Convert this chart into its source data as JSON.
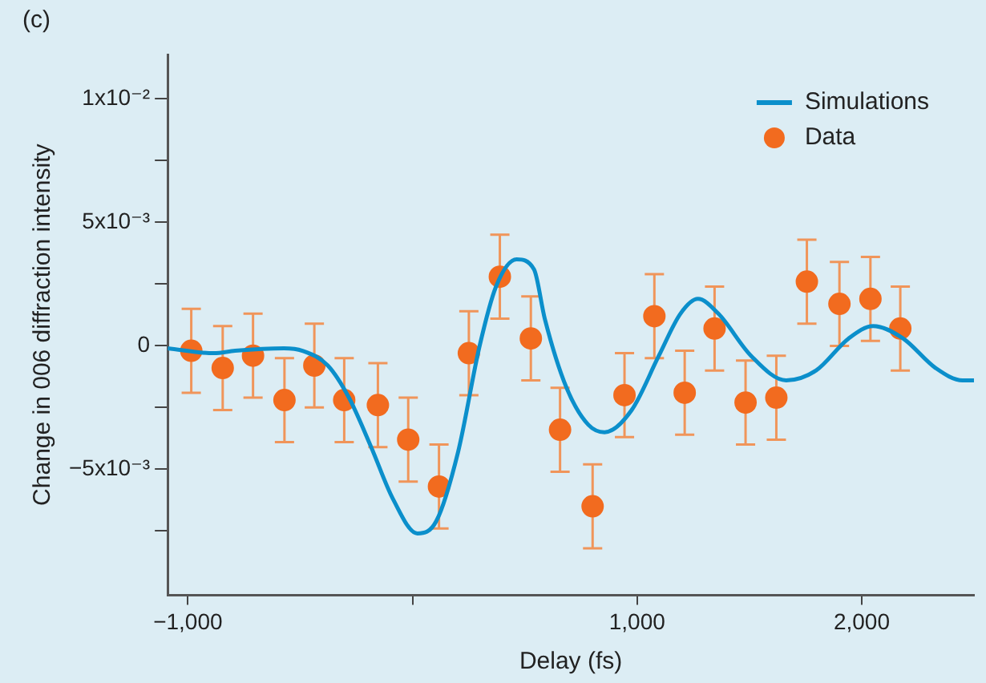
{
  "chart_data": {
    "type": "scatter",
    "title": "(c)",
    "xlabel": "Delay (fs)",
    "ylabel": "Change in 006 diffraction intensity",
    "xlim": [
      -1090,
      2500
    ],
    "xticks": [
      {
        "value": -1000,
        "label": "−1,000"
      },
      {
        "value": 0,
        "label": null
      },
      {
        "value": 1000,
        "label": "1,000"
      },
      {
        "value": 2000,
        "label": "2,000"
      }
    ],
    "ylim": [
      -0.0101,
      0.0118
    ],
    "yticks": [
      {
        "value": -0.0075,
        "label": null
      },
      {
        "value": -0.005,
        "label": "−5x10⁻³"
      },
      {
        "value": -0.0025,
        "label": null
      },
      {
        "value": 0,
        "label": "0"
      },
      {
        "value": 0.0025,
        "label": null
      },
      {
        "value": 0.005,
        "label": "5x10⁻³"
      },
      {
        "value": 0.0075,
        "label": null
      },
      {
        "value": 0.01,
        "label": "1x10⁻²"
      }
    ],
    "grid": false,
    "legend": "top right",
    "series": [
      {
        "name": "Simulations",
        "type": "line",
        "color": "#0b8fcb",
        "marker": "none",
        "line_style": "solid",
        "x": [
          -1090,
          -884,
          -790,
          -572,
          -490,
          -377,
          -283,
          -184,
          -87,
          22,
          106,
          203,
          299,
          372,
          464,
          541,
          589,
          686,
          783,
          855,
          976,
          1097,
          1193,
          1271,
          1362,
          1507,
          1664,
          1797,
          1942,
          2051,
          2184,
          2329,
          2449,
          2500
        ],
        "values": [
          -0.0001,
          -0.0003,
          -0.0002,
          -0.0001,
          -0.0002,
          -0.0008,
          -0.0021,
          -0.0041,
          -0.0062,
          -0.0076,
          -0.0071,
          -0.0043,
          0.0,
          0.0024,
          0.0035,
          0.0031,
          0.0011,
          -0.0017,
          -0.0032,
          -0.0035,
          -0.0026,
          -0.0004,
          0.0013,
          0.0019,
          0.0013,
          -0.0004,
          -0.0014,
          -0.001,
          0.0003,
          0.0008,
          0.0003,
          -0.0009,
          -0.0014,
          -0.0014
        ]
      },
      {
        "name": "Data",
        "color": "#f26b1f",
        "marker": "circle",
        "x": [
          -985,
          -845,
          -710,
          -570,
          -437,
          -304,
          -154,
          -19,
          118,
          251,
          389,
          527,
          657,
          802,
          944,
          1077,
          1212,
          1345,
          1483,
          1620,
          1756,
          1901,
          2039,
          2172
        ],
        "values": [
          -0.0002,
          -0.0009,
          -0.0004,
          -0.0022,
          -0.0008,
          -0.0022,
          -0.0024,
          -0.0038,
          -0.0057,
          -0.0003,
          0.0028,
          0.0003,
          -0.0034,
          -0.0065,
          -0.002,
          0.0012,
          -0.0019,
          0.0007,
          -0.0023,
          -0.0021,
          0.0026,
          0.0017,
          0.0019,
          0.0007
        ],
        "errors": [
          0.0017,
          0.0017,
          0.0017,
          0.0017,
          0.0017,
          0.0017,
          0.0017,
          0.0017,
          0.0017,
          0.0017,
          0.0017,
          0.0017,
          0.0017,
          0.0017,
          0.0017,
          0.0017,
          0.0017,
          0.0017,
          0.0017,
          0.0017,
          0.0017,
          0.0017,
          0.0017,
          0.0017
        ]
      }
    ]
  }
}
